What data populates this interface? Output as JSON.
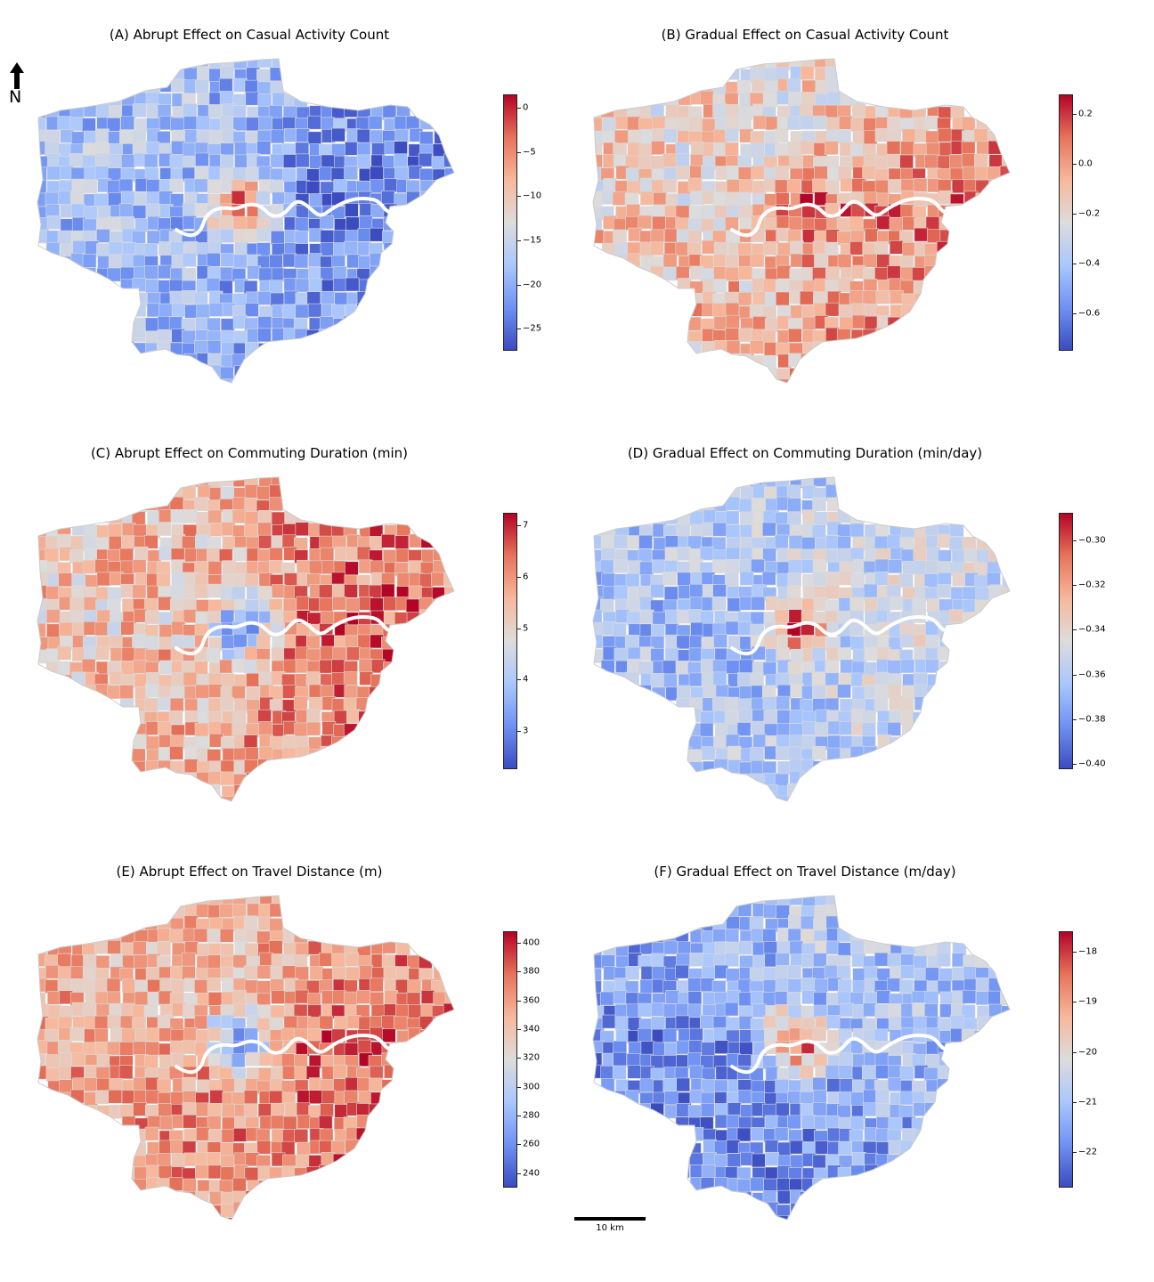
{
  "figure": {
    "north_label": "N",
    "scalebar_label": "10 km",
    "colormap": [
      "#3b4cc0",
      "#6f92f3",
      "#aac7fd",
      "#dddcdc",
      "#f7b89c",
      "#e7745b",
      "#b40426"
    ]
  },
  "chart_data": [
    {
      "type": "choropleth",
      "title": "(A) Abrupt Effect on Casual Activity Count",
      "colorbar": {
        "ticks": [
          "0",
          "−5",
          "−10",
          "−15",
          "−20",
          "−25"
        ],
        "tick_values": [
          0,
          -5,
          -10,
          -15,
          -20,
          -25
        ],
        "range": [
          -27.5,
          1.5
        ]
      },
      "pattern": {
        "center": 0.9,
        "north": 0.3,
        "east": 0.1,
        "south": 0.25,
        "west": 0.32,
        "noise": 0.18
      }
    },
    {
      "type": "choropleth",
      "title": "(B) Gradual Effect on Casual Activity Count",
      "colorbar": {
        "ticks": [
          "0.2",
          "0.0",
          "−0.2",
          "−0.4",
          "−0.6"
        ],
        "tick_values": [
          0.2,
          0.0,
          -0.2,
          -0.4,
          -0.6
        ],
        "range": [
          -0.75,
          0.28
        ]
      },
      "pattern": {
        "center": 0.85,
        "north": 0.55,
        "east": 0.8,
        "south": 0.68,
        "west": 0.6,
        "noise": 0.2
      }
    },
    {
      "type": "choropleth",
      "title": "(C) Abrupt Effect on Commuting Duration (min)",
      "colorbar": {
        "ticks": [
          "7",
          "6",
          "5",
          "4",
          "3"
        ],
        "tick_values": [
          7,
          6,
          5,
          4,
          3
        ],
        "range": [
          2.25,
          7.25
        ]
      },
      "pattern": {
        "center": 0.1,
        "north": 0.68,
        "east": 0.85,
        "south": 0.7,
        "west": 0.62,
        "noise": 0.2
      }
    },
    {
      "type": "choropleth",
      "title": "(D) Gradual Effect on Commuting Duration (min/day)",
      "colorbar": {
        "ticks": [
          "−0.30",
          "−0.32",
          "−0.34",
          "−0.36",
          "−0.38",
          "−0.40"
        ],
        "tick_values": [
          -0.3,
          -0.32,
          -0.34,
          -0.36,
          -0.38,
          -0.4
        ],
        "range": [
          -0.4025,
          -0.2875
        ]
      },
      "pattern": {
        "center": 0.9,
        "north": 0.38,
        "east": 0.45,
        "south": 0.35,
        "west": 0.3,
        "noise": 0.17
      }
    },
    {
      "type": "choropleth",
      "title": "(E) Abrupt Effect on Travel Distance (m)",
      "colorbar": {
        "ticks": [
          "400",
          "380",
          "360",
          "340",
          "320",
          "300",
          "280",
          "260",
          "240"
        ],
        "tick_values": [
          400,
          380,
          360,
          340,
          320,
          300,
          280,
          260,
          240
        ],
        "range": [
          230,
          408
        ]
      },
      "pattern": {
        "center": 0.08,
        "north": 0.65,
        "east": 0.85,
        "south": 0.78,
        "west": 0.7,
        "noise": 0.17
      }
    },
    {
      "type": "choropleth",
      "title": "(F) Gradual Effect on Travel Distance (m/day)",
      "colorbar": {
        "ticks": [
          "−18",
          "−19",
          "−20",
          "−21",
          "−22"
        ],
        "tick_values": [
          -18,
          -19,
          -20,
          -21,
          -22
        ],
        "range": [
          -22.7,
          -17.6
        ]
      },
      "pattern": {
        "center": 0.92,
        "north": 0.35,
        "east": 0.3,
        "south": 0.18,
        "west": 0.15,
        "noise": 0.17
      }
    }
  ]
}
